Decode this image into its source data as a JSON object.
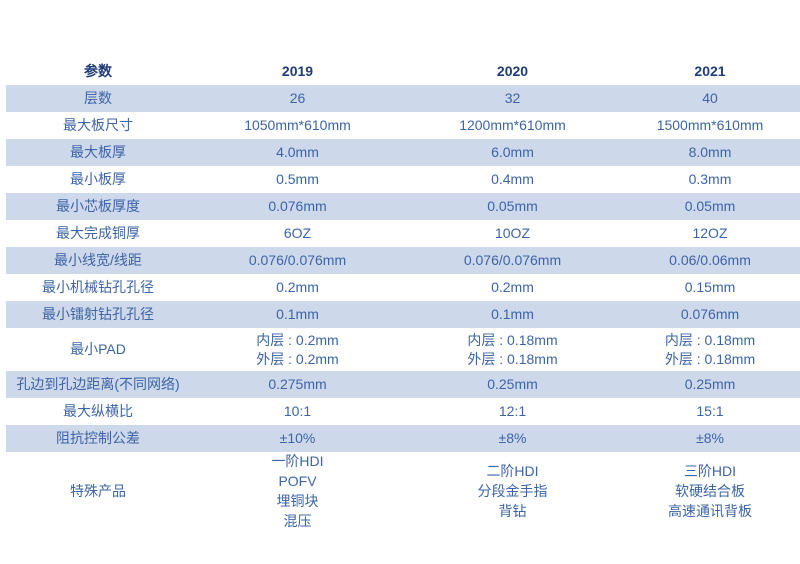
{
  "colors": {
    "band_background": "#CDD8EB",
    "header_text": "#1F3C78",
    "body_text": "#3D64A6",
    "page_background": "#FFFFFF"
  },
  "table": {
    "columns": [
      "参数",
      "2019",
      "2020",
      "2021"
    ],
    "rows": [
      {
        "label": "层数",
        "values": [
          "26",
          "32",
          "40"
        ]
      },
      {
        "label": "最大板尺寸",
        "values": [
          "1050mm*610mm",
          "1200mm*610mm",
          "1500mm*610mm"
        ]
      },
      {
        "label": "最大板厚",
        "values": [
          "4.0mm",
          "6.0mm",
          "8.0mm"
        ]
      },
      {
        "label": "最小板厚",
        "values": [
          "0.5mm",
          "0.4mm",
          "0.3mm"
        ]
      },
      {
        "label": "最小芯板厚度",
        "values": [
          "0.076mm",
          "0.05mm",
          "0.05mm"
        ]
      },
      {
        "label": "最大完成铜厚",
        "values": [
          "6OZ",
          "10OZ",
          "12OZ"
        ]
      },
      {
        "label": "最小线宽/线距",
        "values": [
          "0.076/0.076mm",
          "0.076/0.076mm",
          "0.06/0.06mm"
        ]
      },
      {
        "label": "最小机械钻孔孔径",
        "values": [
          "0.2mm",
          "0.2mm",
          "0.15mm"
        ]
      },
      {
        "label": "最小镭射钻孔孔径",
        "values": [
          "0.1mm",
          "0.1mm",
          "0.076mm"
        ]
      },
      {
        "label": "最小PAD",
        "lines": [
          [
            "内层 : 0.2mm",
            "外层 : 0.2mm"
          ],
          [
            "内层 : 0.18mm",
            "外层 : 0.18mm"
          ],
          [
            "内层 : 0.18mm",
            "外层 : 0.18mm"
          ]
        ]
      },
      {
        "label": "孔边到孔边距离(不同网络)",
        "values": [
          "0.275mm",
          "0.25mm",
          "0.25mm"
        ]
      },
      {
        "label": "最大纵横比",
        "values": [
          "10:1",
          "12:1",
          "15:1"
        ]
      },
      {
        "label": "阻抗控制公差",
        "values": [
          "±10%",
          "±8%",
          "±8%"
        ]
      },
      {
        "label": "特殊产品",
        "lines": [
          [
            "一阶HDI",
            "POFV",
            "埋铜块",
            "混压"
          ],
          [
            "二阶HDI",
            "分段金手指",
            "背钻"
          ],
          [
            "三阶HDI",
            "软硬结合板",
            "高速通讯背板"
          ]
        ]
      }
    ]
  }
}
